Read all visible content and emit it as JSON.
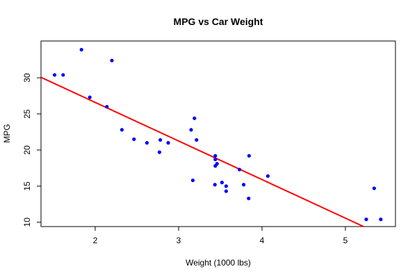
{
  "chart_data": {
    "type": "scatter",
    "title": "MPG vs Car Weight",
    "xlabel": "Weight (1000 lbs)",
    "ylabel": "MPG",
    "xlim": [
      1.35,
      5.6
    ],
    "ylim": [
      9.4,
      35.1
    ],
    "x_ticks": [
      2,
      3,
      4,
      5
    ],
    "y_ticks": [
      10,
      15,
      20,
      25,
      30
    ],
    "grid": false,
    "legend": "none",
    "point_color": "#0000ff",
    "line_color": "#ff0000",
    "points": [
      {
        "x": 1.513,
        "y": 30.4
      },
      {
        "x": 1.615,
        "y": 30.4
      },
      {
        "x": 1.835,
        "y": 33.9
      },
      {
        "x": 1.935,
        "y": 27.3
      },
      {
        "x": 2.14,
        "y": 26.0
      },
      {
        "x": 2.2,
        "y": 32.4
      },
      {
        "x": 2.32,
        "y": 22.8
      },
      {
        "x": 2.465,
        "y": 21.5
      },
      {
        "x": 2.62,
        "y": 21.0
      },
      {
        "x": 2.77,
        "y": 19.7
      },
      {
        "x": 2.78,
        "y": 21.4
      },
      {
        "x": 2.875,
        "y": 21.0
      },
      {
        "x": 3.15,
        "y": 22.8
      },
      {
        "x": 3.17,
        "y": 15.8
      },
      {
        "x": 3.19,
        "y": 24.4
      },
      {
        "x": 3.215,
        "y": 21.4
      },
      {
        "x": 3.435,
        "y": 15.2
      },
      {
        "x": 3.44,
        "y": 18.7
      },
      {
        "x": 3.44,
        "y": 19.2
      },
      {
        "x": 3.44,
        "y": 17.8
      },
      {
        "x": 3.46,
        "y": 18.1
      },
      {
        "x": 3.52,
        "y": 15.5
      },
      {
        "x": 3.57,
        "y": 15.0
      },
      {
        "x": 3.57,
        "y": 14.3
      },
      {
        "x": 3.73,
        "y": 17.3
      },
      {
        "x": 3.78,
        "y": 15.2
      },
      {
        "x": 3.84,
        "y": 13.3
      },
      {
        "x": 3.845,
        "y": 19.2
      },
      {
        "x": 4.07,
        "y": 16.4
      },
      {
        "x": 5.25,
        "y": 10.4
      },
      {
        "x": 5.345,
        "y": 14.7
      },
      {
        "x": 5.424,
        "y": 10.4
      }
    ],
    "fit_line": {
      "intercept": 37.285,
      "slope": -5.344
    }
  }
}
